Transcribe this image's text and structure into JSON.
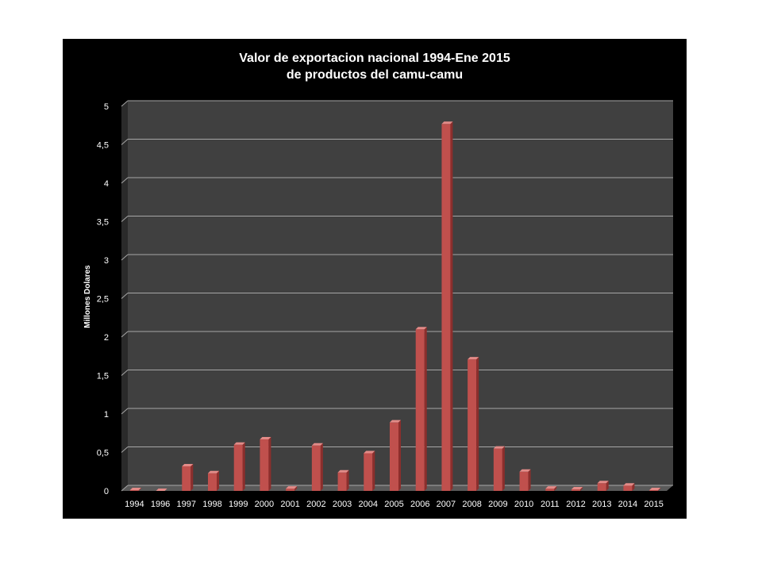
{
  "chart_data": {
    "type": "bar",
    "title": [
      "Valor de exportacion nacional 1994-Ene 2015",
      "de productos del camu-camu"
    ],
    "ylabel": "Millones  Dolares",
    "xlabel": "",
    "categories": [
      "1994",
      "1996",
      "1997",
      "1998",
      "1999",
      "2000",
      "2001",
      "2002",
      "2003",
      "2004",
      "2005",
      "2006",
      "2007",
      "2008",
      "2009",
      "2010",
      "2011",
      "2012",
      "2013",
      "2014",
      "2015"
    ],
    "values": [
      0.01,
      0.0,
      0.32,
      0.23,
      0.6,
      0.67,
      0.03,
      0.59,
      0.24,
      0.49,
      0.89,
      2.1,
      4.77,
      1.71,
      0.55,
      0.25,
      0.03,
      0.02,
      0.1,
      0.07,
      0.01
    ],
    "yticks": [
      "0",
      "0,5",
      "1",
      "1,5",
      "2",
      "2,5",
      "3",
      "3,5",
      "4",
      "4,5",
      "5"
    ],
    "ylim": [
      0,
      5
    ],
    "grid": true,
    "legend": "none",
    "colors": {
      "background": "#000000",
      "plot_back": "#404040",
      "plot_side": "#2a2a2a",
      "floor": "#5a5a5a",
      "gridline": "#a6a6a6",
      "bar_front": "#c0504d",
      "bar_side": "#8c2e2c",
      "bar_top": "#e38b88",
      "text": "#ffffff"
    }
  }
}
